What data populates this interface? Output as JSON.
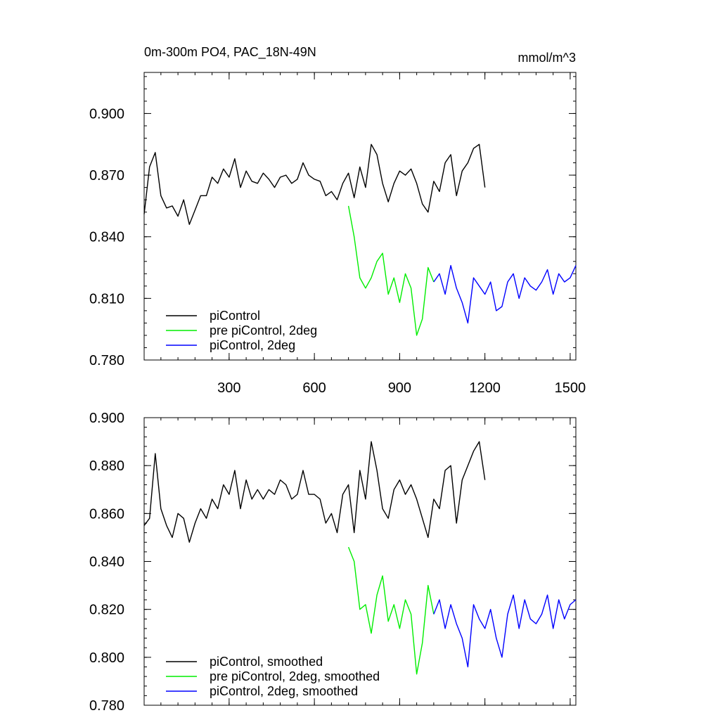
{
  "chart_data": [
    {
      "type": "line",
      "title": "0m-300m PO4, PAC_18N-49N",
      "units": "mmol/m^3",
      "xlabel": "",
      "ylabel": "",
      "xlim": [
        1,
        1520
      ],
      "ylim": [
        0.78,
        0.92
      ],
      "xticks": [
        300,
        600,
        900,
        1200,
        1500
      ],
      "xtick_labels": [
        "300",
        "600",
        "900",
        "1200",
        "1500"
      ],
      "yticks": [
        0.78,
        0.81,
        0.84,
        0.87,
        0.9
      ],
      "ytick_labels": [
        "0.780",
        "0.810",
        "0.840",
        "0.870",
        "0.900"
      ],
      "grid": false,
      "legend_position": "bottom-left",
      "series": [
        {
          "name": "piControl",
          "color": "#000000",
          "x": [
            1,
            20,
            40,
            60,
            80,
            100,
            120,
            140,
            160,
            180,
            200,
            220,
            240,
            260,
            280,
            300,
            320,
            340,
            360,
            380,
            400,
            420,
            440,
            460,
            480,
            500,
            520,
            540,
            560,
            580,
            600,
            620,
            640,
            660,
            680,
            700,
            720,
            740,
            760,
            780,
            800,
            820,
            840,
            860,
            880,
            900,
            920,
            940,
            960,
            980,
            1000,
            1020,
            1040,
            1060,
            1080,
            1100,
            1120,
            1140,
            1160,
            1180,
            1200
          ],
          "y": [
            0.851,
            0.874,
            0.881,
            0.86,
            0.854,
            0.855,
            0.85,
            0.858,
            0.846,
            0.853,
            0.86,
            0.86,
            0.869,
            0.866,
            0.873,
            0.869,
            0.878,
            0.864,
            0.872,
            0.867,
            0.866,
            0.871,
            0.868,
            0.864,
            0.869,
            0.87,
            0.866,
            0.868,
            0.876,
            0.87,
            0.868,
            0.867,
            0.86,
            0.862,
            0.858,
            0.866,
            0.871,
            0.859,
            0.874,
            0.864,
            0.885,
            0.88,
            0.866,
            0.857,
            0.866,
            0.872,
            0.87,
            0.873,
            0.866,
            0.856,
            0.852,
            0.867,
            0.862,
            0.876,
            0.88,
            0.86,
            0.872,
            0.876,
            0.883,
            0.885,
            0.864
          ]
        },
        {
          "name": "pre piControl, 2deg",
          "color": "#00ee00",
          "x": [
            720,
            740,
            760,
            780,
            800,
            820,
            840,
            860,
            880,
            900,
            920,
            940,
            960,
            980,
            1000,
            1020
          ],
          "y": [
            0.855,
            0.84,
            0.82,
            0.815,
            0.82,
            0.828,
            0.832,
            0.812,
            0.82,
            0.808,
            0.822,
            0.815,
            0.792,
            0.8,
            0.825,
            0.818
          ]
        },
        {
          "name": "piControl, 2deg",
          "color": "#0000ff",
          "x": [
            1020,
            1040,
            1060,
            1080,
            1100,
            1120,
            1140,
            1160,
            1180,
            1200,
            1220,
            1240,
            1260,
            1280,
            1300,
            1320,
            1340,
            1360,
            1380,
            1400,
            1420,
            1440,
            1460,
            1480,
            1500,
            1520
          ],
          "y": [
            0.818,
            0.822,
            0.812,
            0.826,
            0.815,
            0.808,
            0.798,
            0.82,
            0.816,
            0.812,
            0.818,
            0.804,
            0.806,
            0.818,
            0.822,
            0.81,
            0.82,
            0.816,
            0.814,
            0.818,
            0.824,
            0.812,
            0.822,
            0.818,
            0.82,
            0.826
          ]
        }
      ]
    },
    {
      "type": "line",
      "title": "",
      "xlabel": "",
      "ylabel": "",
      "xlim": [
        1,
        1520
      ],
      "ylim": [
        0.78,
        0.9
      ],
      "xticks": [
        300,
        600,
        900,
        1200,
        1500
      ],
      "xtick_labels": [],
      "yticks": [
        0.78,
        0.8,
        0.82,
        0.84,
        0.86,
        0.88,
        0.9
      ],
      "ytick_labels": [
        "0.780",
        "0.800",
        "0.820",
        "0.840",
        "0.860",
        "0.880",
        "0.900"
      ],
      "grid": false,
      "legend_position": "bottom-left",
      "series": [
        {
          "name": "piControl, smoothed",
          "color": "#000000",
          "x": [
            1,
            20,
            40,
            60,
            80,
            100,
            120,
            140,
            160,
            180,
            200,
            220,
            240,
            260,
            280,
            300,
            320,
            340,
            360,
            380,
            400,
            420,
            440,
            460,
            480,
            500,
            520,
            540,
            560,
            580,
            600,
            620,
            640,
            660,
            680,
            700,
            720,
            740,
            760,
            780,
            800,
            820,
            840,
            860,
            880,
            900,
            920,
            940,
            960,
            980,
            1000,
            1020,
            1040,
            1060,
            1080,
            1100,
            1120,
            1140,
            1160,
            1180,
            1200
          ],
          "y": [
            0.855,
            0.858,
            0.885,
            0.862,
            0.855,
            0.85,
            0.86,
            0.858,
            0.848,
            0.856,
            0.862,
            0.858,
            0.866,
            0.862,
            0.872,
            0.868,
            0.878,
            0.862,
            0.874,
            0.866,
            0.87,
            0.866,
            0.87,
            0.868,
            0.874,
            0.872,
            0.866,
            0.868,
            0.878,
            0.868,
            0.868,
            0.866,
            0.856,
            0.86,
            0.852,
            0.868,
            0.872,
            0.852,
            0.878,
            0.866,
            0.89,
            0.878,
            0.862,
            0.858,
            0.87,
            0.874,
            0.868,
            0.872,
            0.866,
            0.858,
            0.85,
            0.866,
            0.862,
            0.878,
            0.88,
            0.856,
            0.874,
            0.88,
            0.886,
            0.89,
            0.874
          ]
        },
        {
          "name": "pre piControl, 2deg, smoothed",
          "color": "#00ee00",
          "x": [
            720,
            740,
            760,
            780,
            800,
            820,
            840,
            860,
            880,
            900,
            920,
            940,
            960,
            980,
            1000,
            1020
          ],
          "y": [
            0.846,
            0.84,
            0.82,
            0.822,
            0.81,
            0.826,
            0.834,
            0.815,
            0.822,
            0.812,
            0.824,
            0.818,
            0.793,
            0.806,
            0.83,
            0.818
          ]
        },
        {
          "name": "piControl, 2deg, smoothed",
          "color": "#0000ff",
          "x": [
            1020,
            1040,
            1060,
            1080,
            1100,
            1120,
            1140,
            1160,
            1180,
            1200,
            1220,
            1240,
            1260,
            1280,
            1300,
            1320,
            1340,
            1360,
            1380,
            1400,
            1420,
            1440,
            1460,
            1480,
            1500,
            1520
          ],
          "y": [
            0.818,
            0.824,
            0.812,
            0.822,
            0.814,
            0.808,
            0.796,
            0.822,
            0.816,
            0.812,
            0.82,
            0.808,
            0.8,
            0.818,
            0.826,
            0.812,
            0.824,
            0.816,
            0.814,
            0.818,
            0.826,
            0.812,
            0.824,
            0.816,
            0.822,
            0.824
          ]
        }
      ]
    }
  ]
}
